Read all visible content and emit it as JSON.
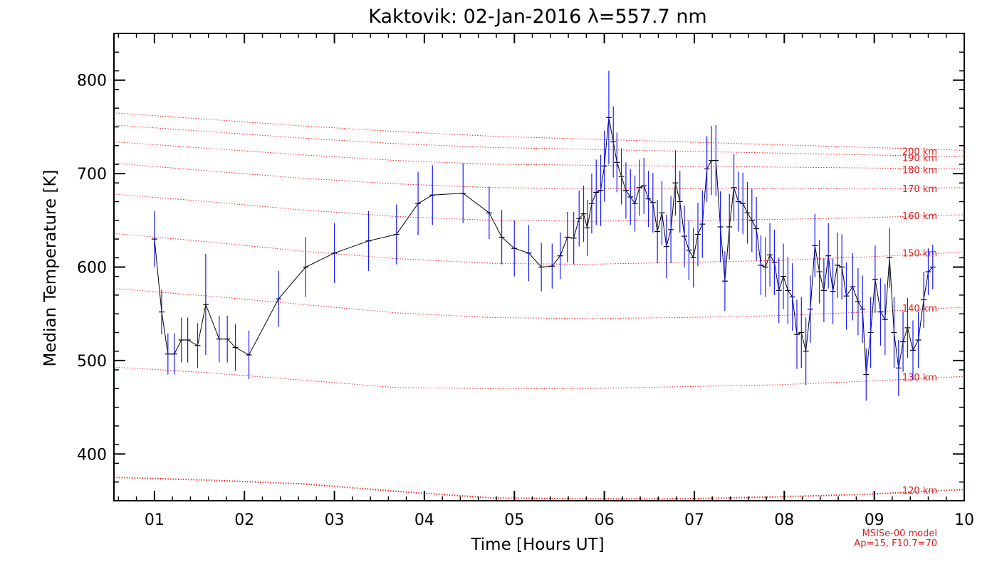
{
  "chart_data": {
    "type": "line",
    "title": "Kaktovik: 02-Jan-2016 λ=557.7 nm",
    "xlabel": "Time [Hours UT]",
    "ylabel": "Median Temperature [K]",
    "xlim": [
      0.55,
      10.0
    ],
    "ylim": [
      350,
      850
    ],
    "x_ticks": [
      {
        "value": 1,
        "label": "01"
      },
      {
        "value": 2,
        "label": "02"
      },
      {
        "value": 3,
        "label": "03"
      },
      {
        "value": 4,
        "label": "04"
      },
      {
        "value": 5,
        "label": "05"
      },
      {
        "value": 6,
        "label": "06"
      },
      {
        "value": 7,
        "label": "07"
      },
      {
        "value": 8,
        "label": "08"
      },
      {
        "value": 9,
        "label": "09"
      },
      {
        "value": 10,
        "label": "10"
      }
    ],
    "y_ticks": [
      {
        "value": 400,
        "label": "400"
      },
      {
        "value": 500,
        "label": "500"
      },
      {
        "value": 600,
        "label": "600"
      },
      {
        "value": 700,
        "label": "700"
      },
      {
        "value": 800,
        "label": "800"
      }
    ],
    "grid": false,
    "series": [
      {
        "color": "#000000",
        "errorbar_color": "#1a1aff",
        "x": [
          1.0,
          1.08,
          1.15,
          1.22,
          1.3,
          1.37,
          1.48,
          1.57,
          1.72,
          1.81,
          1.9,
          2.05,
          2.38,
          2.68,
          3.0,
          3.38,
          3.69,
          3.93,
          4.09,
          4.43,
          4.72,
          4.86,
          5.0,
          5.16,
          5.3,
          5.42,
          5.51,
          5.59,
          5.66,
          5.72,
          5.77,
          5.81,
          5.86,
          5.91,
          5.96,
          6.0,
          6.05,
          6.1,
          6.14,
          6.19,
          6.24,
          6.29,
          6.34,
          6.39,
          6.44,
          6.49,
          6.54,
          6.59,
          6.64,
          6.69,
          6.74,
          6.79,
          6.84,
          6.89,
          6.94,
          6.99,
          7.04,
          7.09,
          7.14,
          7.19,
          7.24,
          7.29,
          7.34,
          7.39,
          7.44,
          7.49,
          7.54,
          7.59,
          7.64,
          7.69,
          7.74,
          7.79,
          7.84,
          7.89,
          7.94,
          7.99,
          8.04,
          8.09,
          8.14,
          8.19,
          8.24,
          8.29,
          8.34,
          8.39,
          8.44,
          8.49,
          8.54,
          8.59,
          8.64,
          8.69,
          8.76,
          8.82,
          8.87,
          8.91,
          8.96,
          9.01,
          9.07,
          9.12,
          9.17,
          9.22,
          9.27,
          9.32,
          9.37,
          9.43,
          9.49,
          9.55,
          9.6,
          9.65
        ],
        "y": [
          630,
          552,
          507,
          507,
          522,
          522,
          516,
          560,
          523,
          523,
          514,
          506,
          566,
          600,
          615,
          628,
          635,
          668,
          677,
          679,
          658,
          632,
          620,
          615,
          600,
          601,
          612,
          632,
          631,
          652,
          657,
          642,
          668,
          680,
          682,
          708,
          760,
          734,
          712,
          697,
          682,
          675,
          668,
          685,
          687,
          673,
          669,
          638,
          658,
          622,
          640,
          690,
          670,
          633,
          618,
          610,
          635,
          646,
          705,
          714,
          714,
          643,
          585,
          643,
          685,
          670,
          668,
          658,
          650,
          641,
          602,
          600,
          613,
          605,
          575,
          590,
          575,
          568,
          528,
          530,
          510,
          555,
          623,
          595,
          575,
          612,
          574,
          602,
          600,
          569,
          579,
          563,
          555,
          485,
          530,
          587,
          552,
          544,
          610,
          530,
          492,
          520,
          535,
          511,
          522,
          565,
          595,
          600
        ],
        "err": [
          30,
          24,
          22,
          22,
          24,
          24,
          24,
          54,
          25,
          25,
          25,
          26,
          30,
          32,
          32,
          32,
          32,
          34,
          32,
          32,
          28,
          29,
          30,
          30,
          26,
          24,
          25,
          27,
          28,
          30,
          30,
          30,
          32,
          35,
          38,
          38,
          50,
          38,
          32,
          30,
          30,
          30,
          30,
          30,
          30,
          30,
          32,
          34,
          34,
          34,
          36,
          35,
          33,
          33,
          32,
          32,
          34,
          36,
          35,
          37,
          38,
          38,
          32,
          35,
          36,
          32,
          33,
          33,
          34,
          34,
          32,
          32,
          34,
          35,
          35,
          35,
          36,
          36,
          37,
          38,
          36,
          36,
          34,
          34,
          34,
          35,
          35,
          35,
          35,
          36,
          36,
          36,
          36,
          28,
          38,
          36,
          36,
          38,
          32,
          38,
          30,
          32,
          32,
          32,
          30,
          30,
          25,
          24
        ]
      }
    ],
    "model_lines": [
      {
        "label": "120 km",
        "color": "#ff0000",
        "y": [
          375,
          372,
          368,
          360,
          353,
          352,
          352,
          354,
          357,
          362
        ]
      },
      {
        "label": "130 km",
        "color": "#ff0000",
        "y": [
          493,
          487,
          479,
          471,
          470,
          470,
          472,
          474,
          478,
          483
        ]
      },
      {
        "label": "140 km",
        "color": "#ff0000",
        "y": [
          577,
          569,
          560,
          551,
          546,
          545,
          546,
          548,
          552,
          557
        ]
      },
      {
        "label": "150 km",
        "color": "#ff0000",
        "y": [
          636,
          627,
          617,
          609,
          604,
          603,
          605,
          607,
          611,
          616
        ]
      },
      {
        "label": "160 km",
        "color": "#ff0000",
        "y": [
          678,
          670,
          661,
          654,
          650,
          649,
          650,
          651,
          653,
          656
        ]
      },
      {
        "label": "170 km",
        "color": "#ff0000",
        "y": [
          711,
          703,
          695,
          689,
          685,
          684,
          684,
          684,
          684,
          685
        ]
      },
      {
        "label": "180 km",
        "color": "#ff0000",
        "y": [
          734,
          727,
          720,
          714,
          710,
          709,
          708,
          707,
          706,
          705
        ]
      },
      {
        "label": "190 km",
        "color": "#ff0000",
        "y": [
          752,
          745,
          738,
          732,
          728,
          726,
          724,
          722,
          720,
          718
        ]
      },
      {
        "label": "200 km",
        "color": "#ff0000",
        "y": [
          765,
          758,
          751,
          745,
          740,
          737,
          734,
          731,
          728,
          725
        ]
      }
    ],
    "model_x": [
      0.55,
      1.6,
      2.65,
      3.7,
      4.75,
      5.8,
      6.85,
      7.9,
      8.95,
      10.0
    ],
    "model_note": [
      "MSISe-00 model",
      "Ap=15, F10.7=70"
    ]
  }
}
